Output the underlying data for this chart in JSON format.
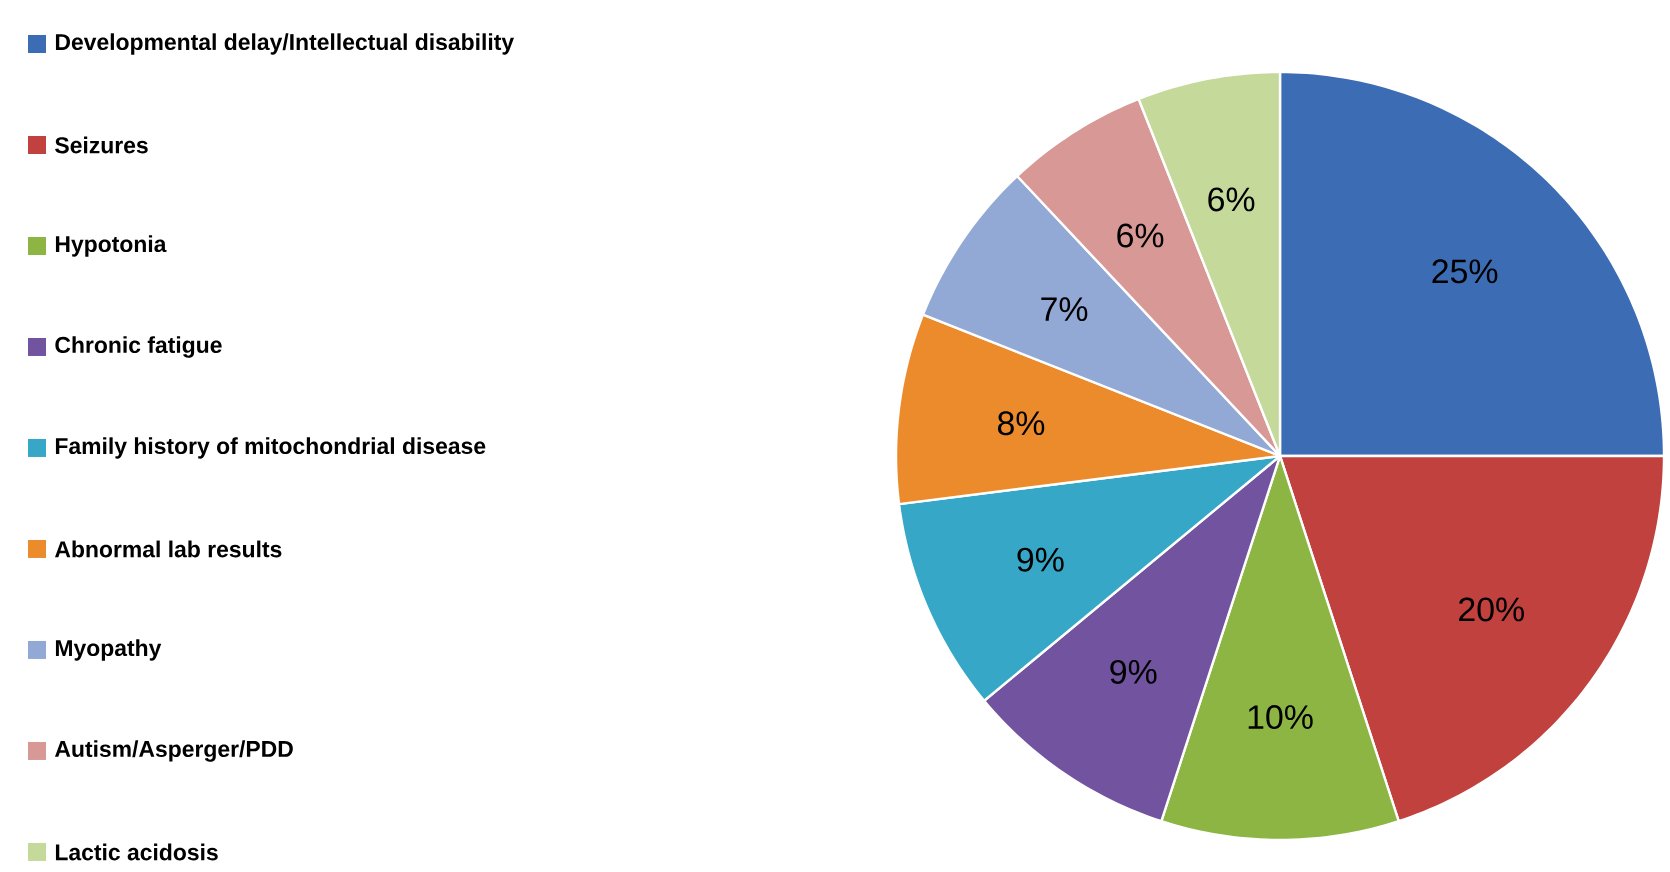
{
  "chart_data": {
    "type": "pie",
    "categories": [
      "Developmental delay/Intellectual disability",
      "Seizures",
      "Hypotonia",
      "Chronic fatigue",
      "Family history of mitochondrial disease",
      "Abnormal lab results",
      "Myopathy",
      "Autism/Asperger/PDD",
      "Lactic acidosis"
    ],
    "values": [
      25,
      20,
      10,
      9,
      9,
      8,
      7,
      6,
      6
    ],
    "value_labels": [
      "25%",
      "20%",
      "10%",
      "9%",
      "9%",
      "8%",
      "7%",
      "6%",
      "6%"
    ],
    "colors": [
      "#3c6db4",
      "#c0413d",
      "#8db544",
      "#7153a0",
      "#36a7c6",
      "#ec8b2c",
      "#93a9d5",
      "#d79896",
      "#c5d99b"
    ],
    "legend": "left"
  }
}
